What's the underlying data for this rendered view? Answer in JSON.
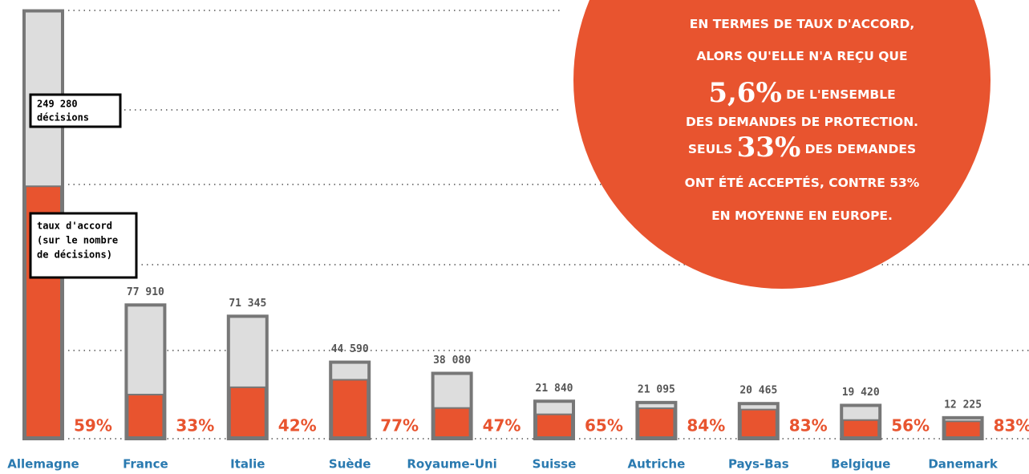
{
  "chart_data": {
    "type": "bar",
    "categories": [
      "Allemagne",
      "France",
      "Italie",
      "Suède",
      "Royaume-Uni",
      "Suisse",
      "Autriche",
      "Pays-Bas",
      "Belgique",
      "Danemark"
    ],
    "series": [
      {
        "name": "décisions",
        "color": "#dddddd",
        "values": [
          249280,
          77910,
          71345,
          44590,
          38080,
          21840,
          21095,
          20465,
          19420,
          12225
        ],
        "value_labels": [
          "249 280",
          "77 910",
          "71 345",
          "44 590",
          "38 080",
          "21 840",
          "21 095",
          "20 465",
          "19 420",
          "12 225"
        ]
      },
      {
        "name": "taux d'accord",
        "color": "#e8542f",
        "values": [
          59,
          33,
          42,
          77,
          47,
          65,
          84,
          83,
          56,
          83
        ],
        "value_labels": [
          "59%",
          "33%",
          "42%",
          "77%",
          "47%",
          "65%",
          "84%",
          "83%",
          "56%",
          "83%"
        ]
      }
    ],
    "ylim": [
      0,
      250000
    ],
    "legend_box_lines": [
      "taux d'accord",
      "(sur le nombre",
      "de décisions)"
    ],
    "circle_text": [
      [
        "EN TERMES DE TAUX D'ACCORD,"
      ],
      [
        "ALORS QU'ELLE N'A REÇU QUE"
      ],
      [
        "5,6%",
        " DE L'ENSEMBLE"
      ],
      [
        "DES DEMANDES DE PROTECTION."
      ],
      [
        "SEULS ",
        "33%",
        " DES DEMANDES"
      ],
      [
        "ONT ÉTÉ ACCEPTÉS, CONTRE 53%"
      ],
      [
        "EN MOYENNE EN EUROPE."
      ]
    ]
  }
}
